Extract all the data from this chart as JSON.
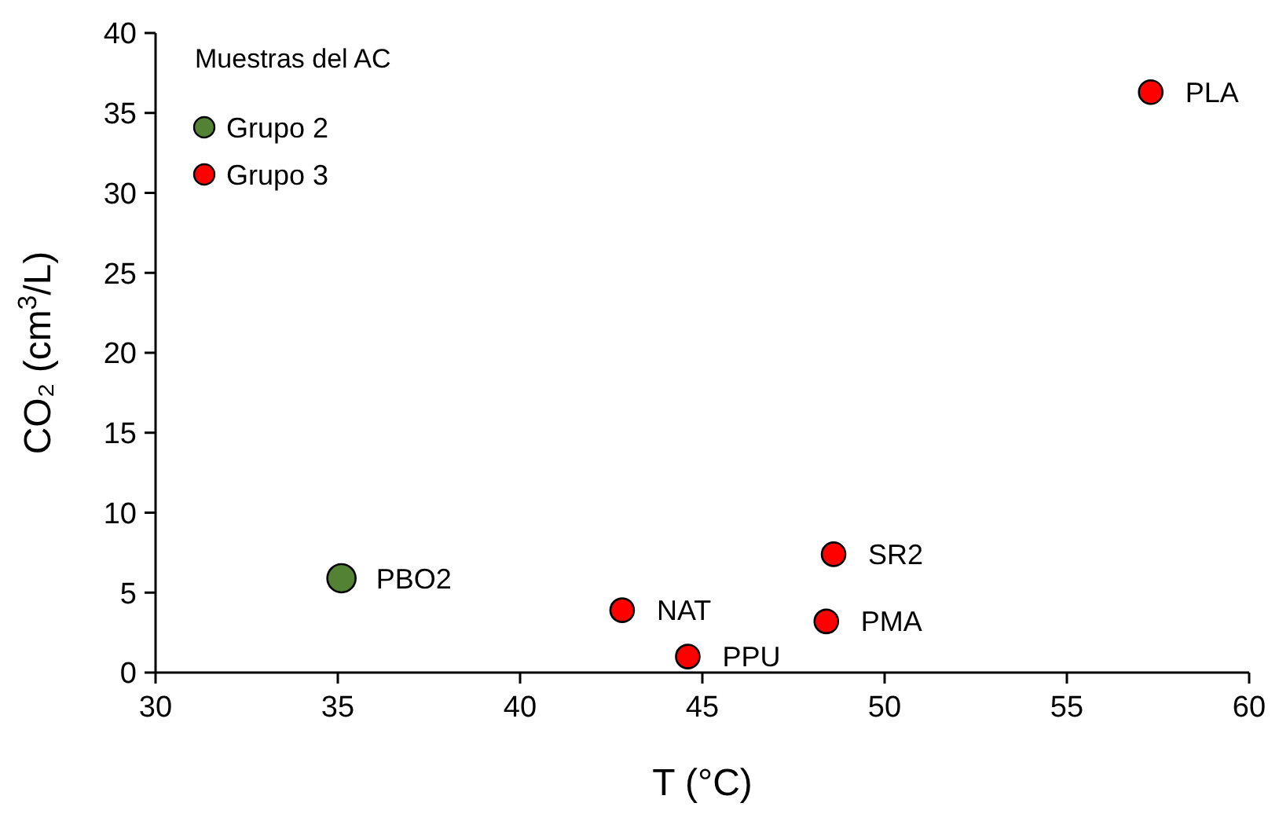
{
  "chart_data": {
    "type": "scatter",
    "xlabel": "T (°C)",
    "ylabel": "CO₂ (cm$^{3}$/L)",
    "legend_title": "Muestras del AC",
    "legend": "top left",
    "marker": "circle",
    "grid": false,
    "xlim": [
      30,
      60
    ],
    "xticks": [
      30,
      35,
      40,
      45,
      50,
      55,
      60
    ],
    "ylim": [
      0,
      40
    ],
    "yticks": [
      0,
      5,
      10,
      15,
      20,
      25,
      30,
      35,
      40
    ],
    "series": [
      {
        "name": "Grupo 2",
        "color": "#548235",
        "x": [
          35.1
        ],
        "values": [
          5.9
        ]
      },
      {
        "name": "Grupo 3",
        "color": "#ff0000",
        "x": [
          42.8,
          44.6,
          48.4,
          48.6,
          57.3
        ],
        "values": [
          3.9,
          1.0,
          3.2,
          7.4,
          36.3
        ]
      }
    ],
    "annotations": [
      {
        "text": "PBO2",
        "x": 35.1,
        "y": 5.9
      },
      {
        "text": "NAT",
        "x": 42.8,
        "y": 3.9
      },
      {
        "text": "PPU",
        "x": 44.6,
        "y": 1.0
      },
      {
        "text": "PMA",
        "x": 48.4,
        "y": 3.2
      },
      {
        "text": "SR2",
        "x": 48.6,
        "y": 7.4
      },
      {
        "text": "PLA",
        "x": 57.3,
        "y": 36.3
      }
    ]
  }
}
